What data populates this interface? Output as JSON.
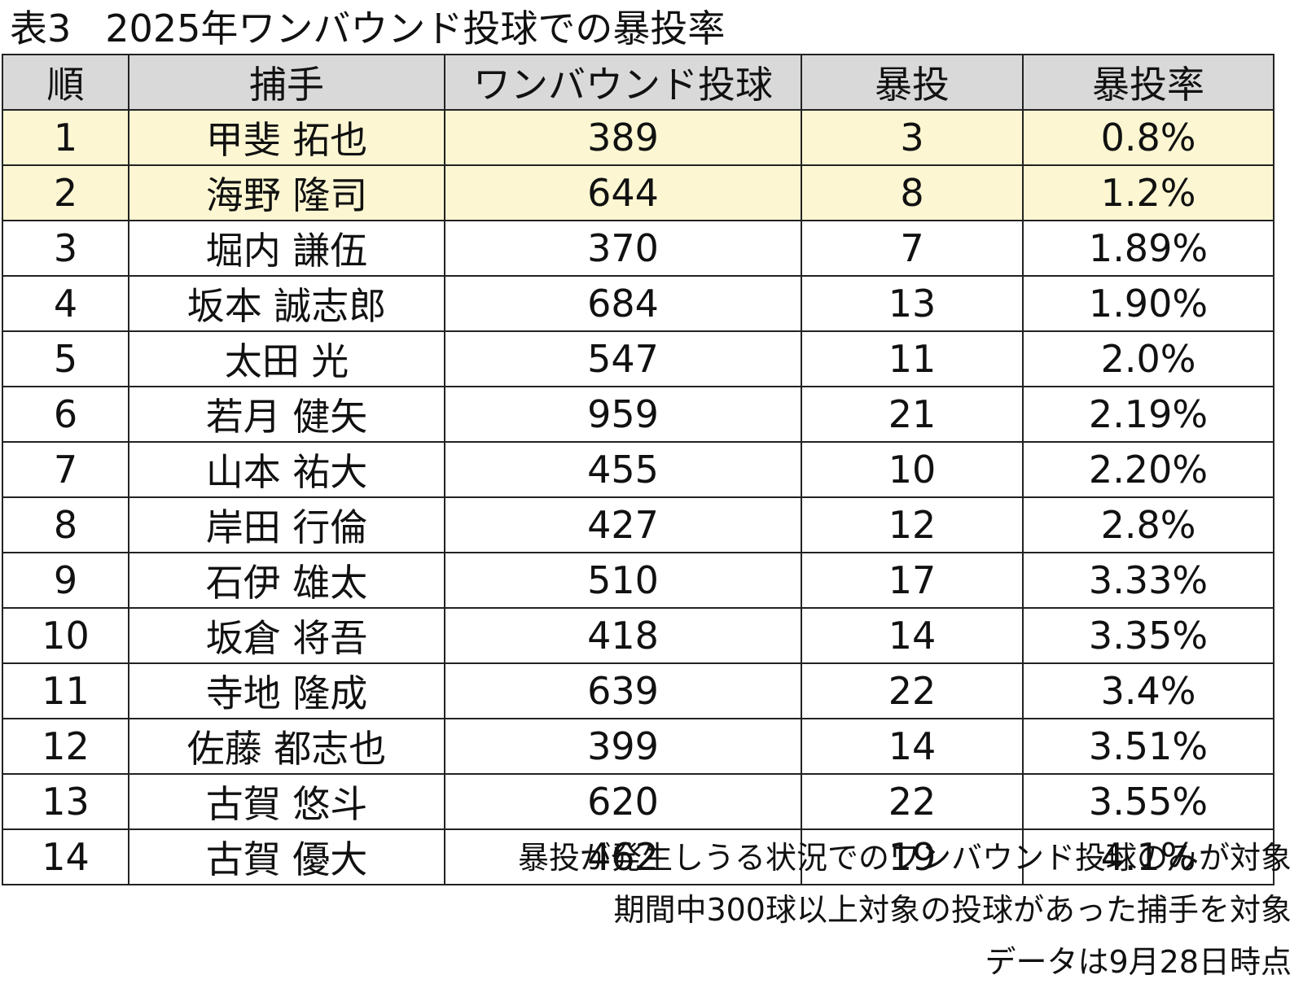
{
  "title": {
    "label": "表3",
    "text": "2025年ワンバウンド投球での暴投率"
  },
  "chart_data": {
    "type": "table",
    "columns": [
      "順",
      "捕手",
      "ワンバウンド投球",
      "暴投",
      "暴投率"
    ],
    "highlight_colors": {
      "header": "#d9d9d9",
      "top_rows": "#fcf7d2",
      "border": "#222222"
    },
    "rows": [
      {
        "rank": "1",
        "catcher": "甲斐 拓也",
        "one_bounce_pitches": "389",
        "wild_pitches": "3",
        "wild_pitch_rate": "0.8%",
        "highlight": true
      },
      {
        "rank": "2",
        "catcher": "海野 隆司",
        "one_bounce_pitches": "644",
        "wild_pitches": "8",
        "wild_pitch_rate": "1.2%",
        "highlight": true
      },
      {
        "rank": "3",
        "catcher": "堀内 謙伍",
        "one_bounce_pitches": "370",
        "wild_pitches": "7",
        "wild_pitch_rate": "1.89%",
        "highlight": false
      },
      {
        "rank": "4",
        "catcher": "坂本 誠志郎",
        "one_bounce_pitches": "684",
        "wild_pitches": "13",
        "wild_pitch_rate": "1.90%",
        "highlight": false
      },
      {
        "rank": "5",
        "catcher": "太田 光",
        "one_bounce_pitches": "547",
        "wild_pitches": "11",
        "wild_pitch_rate": "2.0%",
        "highlight": false
      },
      {
        "rank": "6",
        "catcher": "若月 健矢",
        "one_bounce_pitches": "959",
        "wild_pitches": "21",
        "wild_pitch_rate": "2.19%",
        "highlight": false
      },
      {
        "rank": "7",
        "catcher": "山本 祐大",
        "one_bounce_pitches": "455",
        "wild_pitches": "10",
        "wild_pitch_rate": "2.20%",
        "highlight": false
      },
      {
        "rank": "8",
        "catcher": "岸田 行倫",
        "one_bounce_pitches": "427",
        "wild_pitches": "12",
        "wild_pitch_rate": "2.8%",
        "highlight": false
      },
      {
        "rank": "9",
        "catcher": "石伊 雄太",
        "one_bounce_pitches": "510",
        "wild_pitches": "17",
        "wild_pitch_rate": "3.33%",
        "highlight": false
      },
      {
        "rank": "10",
        "catcher": "坂倉 将吾",
        "one_bounce_pitches": "418",
        "wild_pitches": "14",
        "wild_pitch_rate": "3.35%",
        "highlight": false
      },
      {
        "rank": "11",
        "catcher": "寺地 隆成",
        "one_bounce_pitches": "639",
        "wild_pitches": "22",
        "wild_pitch_rate": "3.4%",
        "highlight": false
      },
      {
        "rank": "12",
        "catcher": "佐藤 都志也",
        "one_bounce_pitches": "399",
        "wild_pitches": "14",
        "wild_pitch_rate": "3.51%",
        "highlight": false
      },
      {
        "rank": "13",
        "catcher": "古賀 悠斗",
        "one_bounce_pitches": "620",
        "wild_pitches": "22",
        "wild_pitch_rate": "3.55%",
        "highlight": false
      },
      {
        "rank": "14",
        "catcher": "古賀 優大",
        "one_bounce_pitches": "462",
        "wild_pitches": "19",
        "wild_pitch_rate": "4.1%",
        "highlight": false
      }
    ]
  },
  "notes": [
    "暴投が発生しうる状況でのワンバウンド投球のみが対象",
    "期間中300球以上対象の投球があった捕手を対象",
    "データは9月28日時点"
  ]
}
